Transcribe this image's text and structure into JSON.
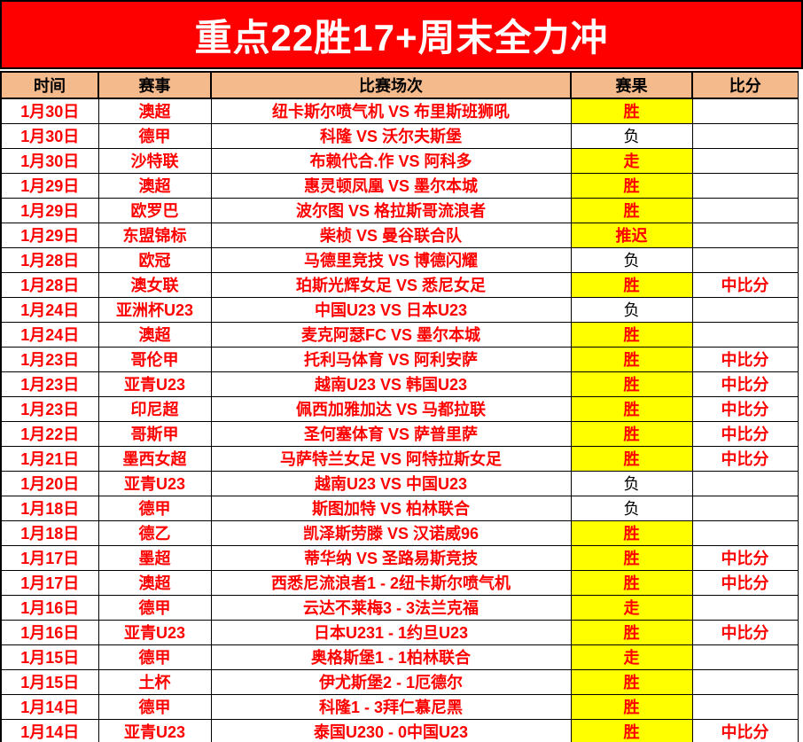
{
  "banner": {
    "title": "重点22胜17+周末全力冲",
    "bg_color": "#FF0000",
    "text_color": "#FFFFFF"
  },
  "colors": {
    "header_bg": "#F4BA8C",
    "highlight_bg": "#FFFF00",
    "main_text": "#FF0000",
    "loss_text": "#000000",
    "border": "#000000"
  },
  "table": {
    "columns": [
      {
        "key": "time",
        "label": "时间"
      },
      {
        "key": "event",
        "label": "赛事"
      },
      {
        "key": "match",
        "label": "比赛场次"
      },
      {
        "key": "result",
        "label": "赛果"
      },
      {
        "key": "score",
        "label": "比分"
      }
    ],
    "rows": [
      {
        "time": "1月30日",
        "event": "澳超",
        "match": "纽卡斯尔喷气机 VS 布里斯班狮吼",
        "result": "胜",
        "highlight": true,
        "score": ""
      },
      {
        "time": "1月30日",
        "event": "德甲",
        "match": "科隆 VS 沃尔夫斯堡",
        "result": "负",
        "highlight": false,
        "score": ""
      },
      {
        "time": "1月30日",
        "event": "沙特联",
        "match": "布赖代合.作 VS 阿科多",
        "result": "走",
        "highlight": true,
        "score": ""
      },
      {
        "time": "1月29日",
        "event": "澳超",
        "match": "惠灵顿凤凰 VS 墨尔本城",
        "result": "胜",
        "highlight": true,
        "score": ""
      },
      {
        "time": "1月29日",
        "event": "欧罗巴",
        "match": "波尔图 VS 格拉斯哥流浪者",
        "result": "胜",
        "highlight": true,
        "score": ""
      },
      {
        "time": "1月29日",
        "event": "东盟锦标",
        "match": "柴桢 VS 曼谷联合队",
        "result": "推迟",
        "highlight": true,
        "score": ""
      },
      {
        "time": "1月28日",
        "event": "欧冠",
        "match": "马德里竞技 VS 博德闪耀",
        "result": "负",
        "highlight": false,
        "score": ""
      },
      {
        "time": "1月28日",
        "event": "澳女联",
        "match": "珀斯光辉女足 VS 悉尼女足",
        "result": "胜",
        "highlight": true,
        "score": "中比分"
      },
      {
        "time": "1月24日",
        "event": "亚洲杯U23",
        "match": "中国U23 VS 日本U23",
        "result": "负",
        "highlight": false,
        "score": ""
      },
      {
        "time": "1月24日",
        "event": "澳超",
        "match": "麦克阿瑟FC VS 墨尔本城",
        "result": "胜",
        "highlight": true,
        "score": ""
      },
      {
        "time": "1月23日",
        "event": "哥伦甲",
        "match": "托利马体育 VS 阿利安萨",
        "result": "胜",
        "highlight": true,
        "score": "中比分"
      },
      {
        "time": "1月23日",
        "event": "亚青U23",
        "match": "越南U23 VS 韩国U23",
        "result": "胜",
        "highlight": true,
        "score": "中比分"
      },
      {
        "time": "1月23日",
        "event": "印尼超",
        "match": "佩西加雅加达 VS 马都拉联",
        "result": "胜",
        "highlight": true,
        "score": "中比分"
      },
      {
        "time": "1月22日",
        "event": "哥斯甲",
        "match": "圣何塞体育 VS 萨普里萨",
        "result": "胜",
        "highlight": true,
        "score": "中比分"
      },
      {
        "time": "1月21日",
        "event": "墨西女超",
        "match": "马萨特兰女足 VS 阿特拉斯女足",
        "result": "胜",
        "highlight": true,
        "score": "中比分"
      },
      {
        "time": "1月20日",
        "event": "亚青U23",
        "match": "越南U23 VS 中国U23",
        "result": "负",
        "highlight": false,
        "score": ""
      },
      {
        "time": "1月18日",
        "event": "德甲",
        "match": "斯图加特 VS 柏林联合",
        "result": "负",
        "highlight": false,
        "score": ""
      },
      {
        "time": "1月18日",
        "event": "德乙",
        "match": "凯泽斯劳滕 VS 汉诺威96",
        "result": "胜",
        "highlight": true,
        "score": ""
      },
      {
        "time": "1月17日",
        "event": "墨超",
        "match": "蒂华纳 VS 圣路易斯竞技",
        "result": "胜",
        "highlight": true,
        "score": "中比分"
      },
      {
        "time": "1月17日",
        "event": "澳超",
        "match": "西悉尼流浪者1 - 2纽卡斯尔喷气机",
        "result": "胜",
        "highlight": true,
        "score": "中比分"
      },
      {
        "time": "1月16日",
        "event": "德甲",
        "match": "云达不莱梅3 - 3法兰克福",
        "result": "走",
        "highlight": true,
        "score": ""
      },
      {
        "time": "1月16日",
        "event": "亚青U23",
        "match": "日本U231 - 1约旦U23",
        "result": "胜",
        "highlight": true,
        "score": "中比分"
      },
      {
        "time": "1月15日",
        "event": "德甲",
        "match": "奥格斯堡1 - 1柏林联合",
        "result": "走",
        "highlight": true,
        "score": ""
      },
      {
        "time": "1月15日",
        "event": "土杯",
        "match": "伊尤斯堡2 - 1厄德尔",
        "result": "胜",
        "highlight": true,
        "score": ""
      },
      {
        "time": "1月14日",
        "event": "德甲",
        "match": "科隆1 - 3拜仁慕尼黑",
        "result": "胜",
        "highlight": true,
        "score": ""
      },
      {
        "time": "1月14日",
        "event": "亚青U23",
        "match": "泰国U230 - 0中国U23",
        "result": "胜",
        "highlight": true,
        "score": "中比分"
      }
    ]
  }
}
